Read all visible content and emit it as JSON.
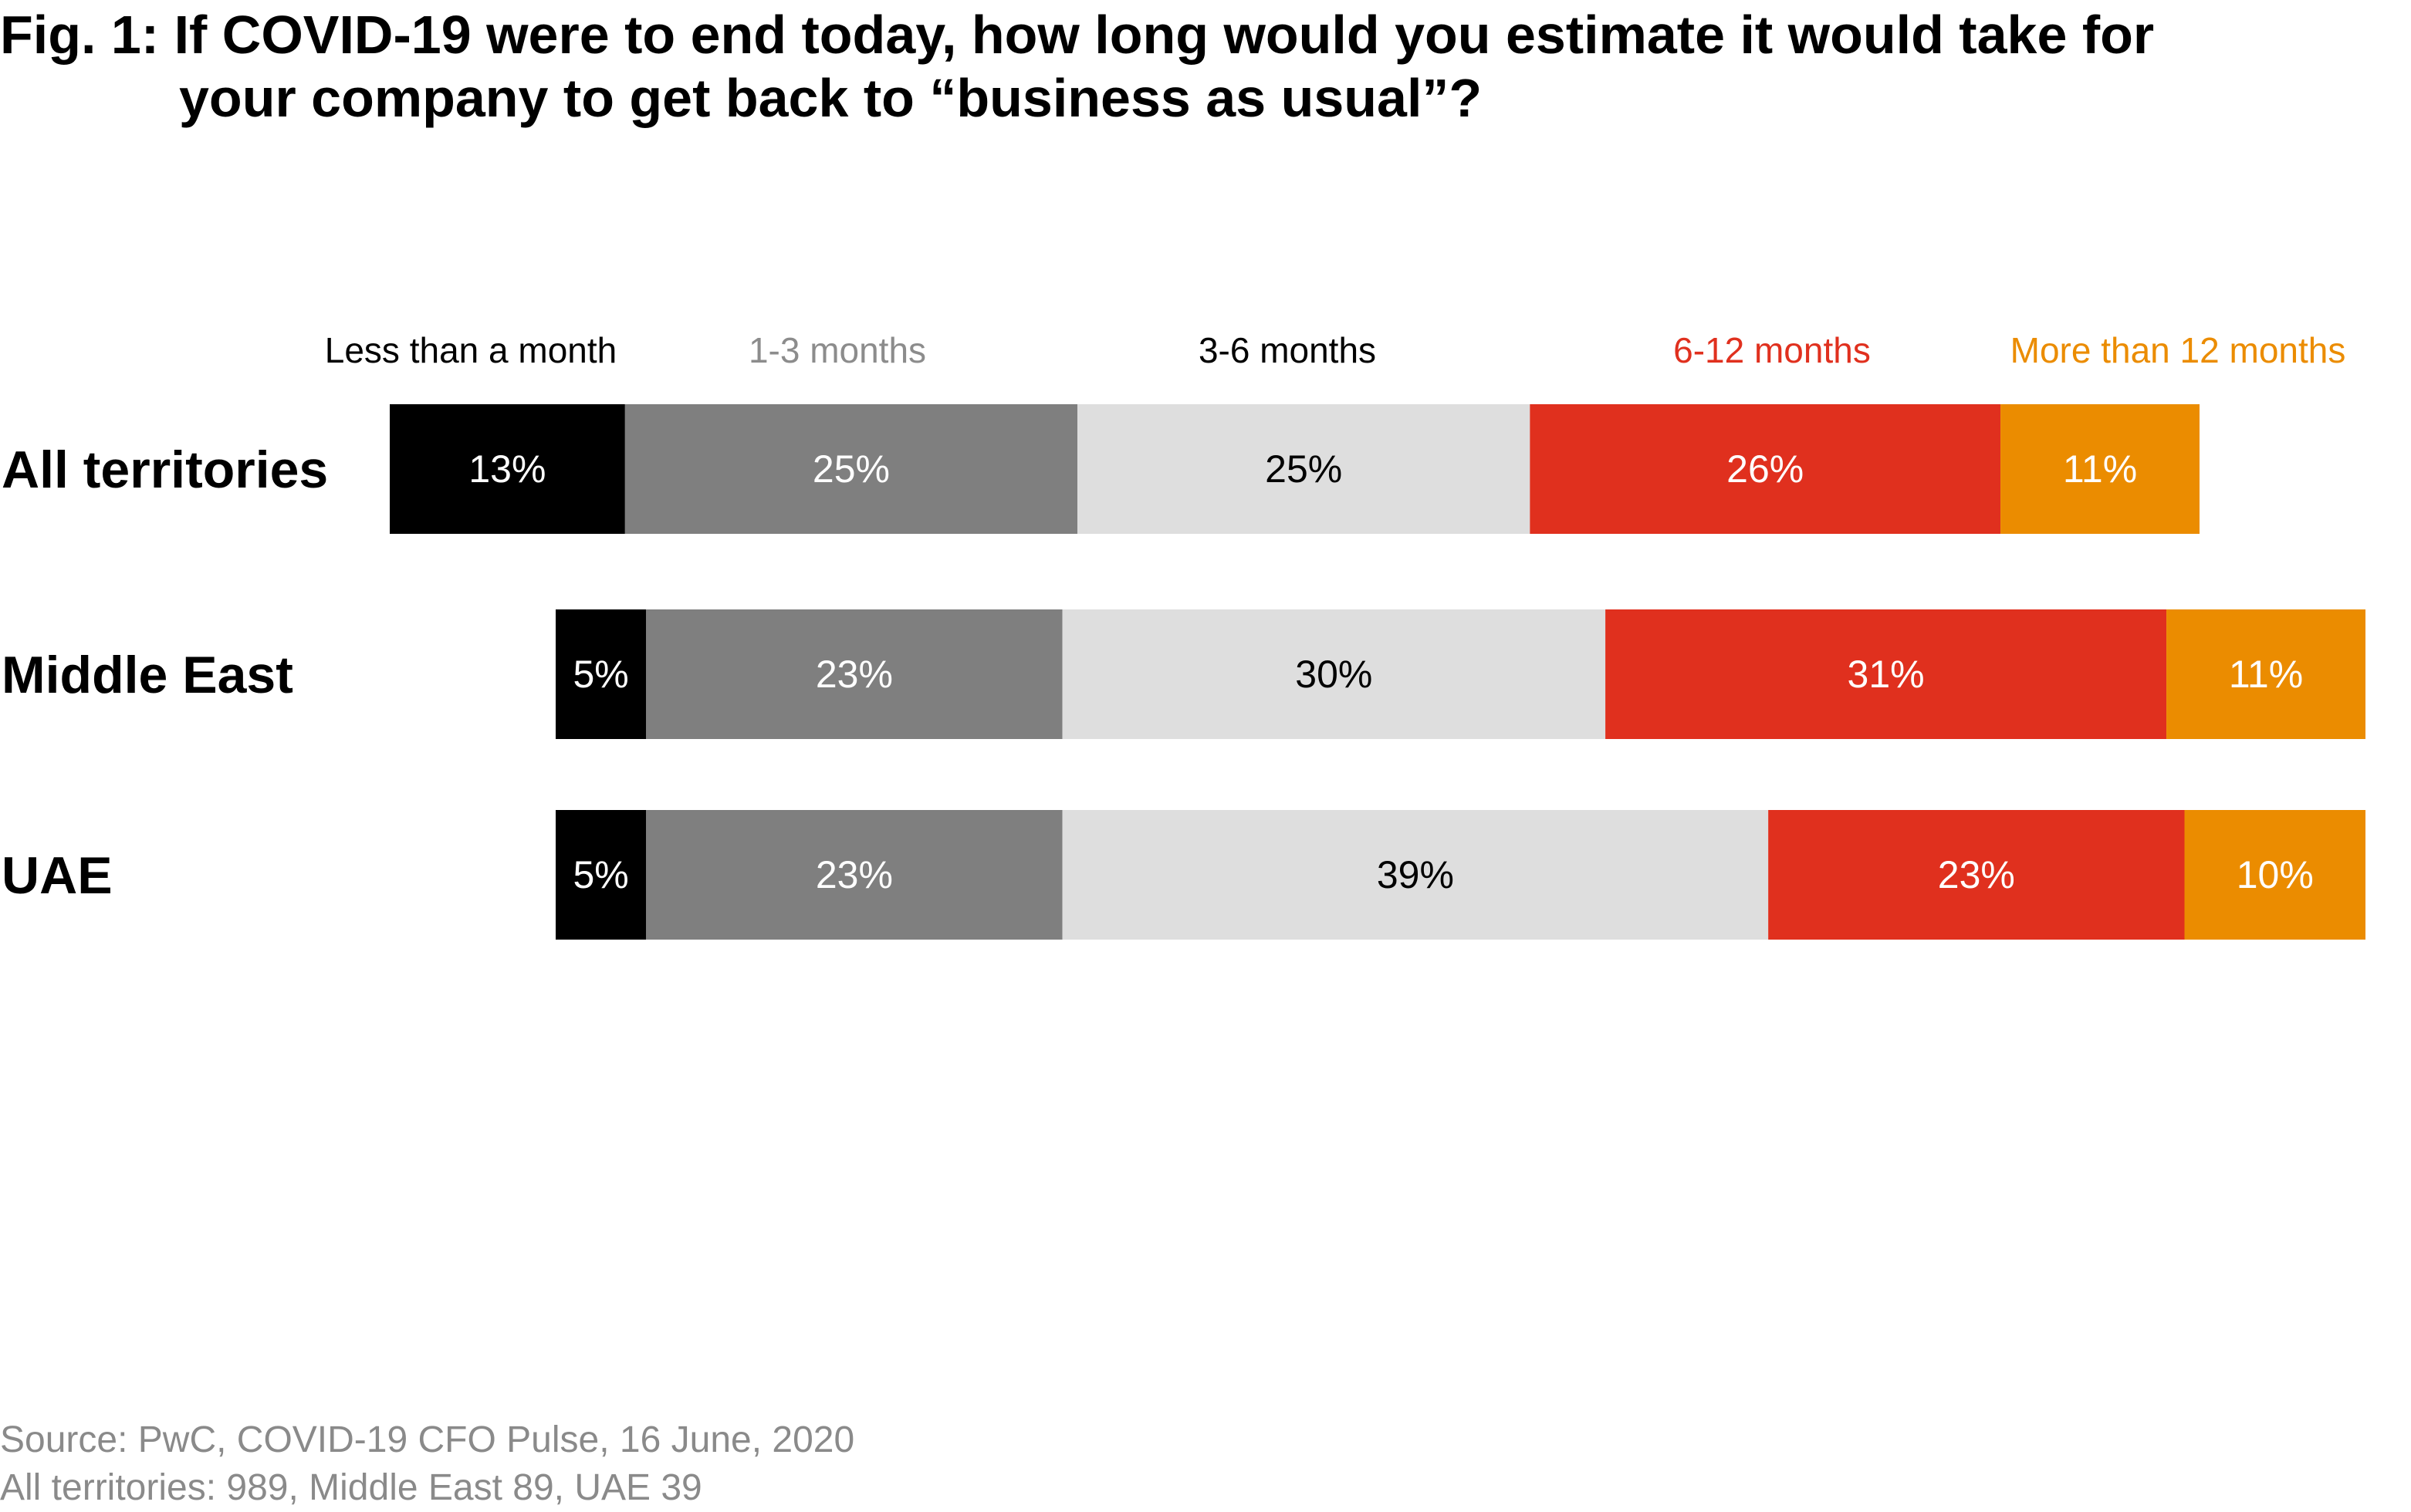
{
  "title": {
    "prefix": "Fig. 1:",
    "line1": "If COVID-19 were to end today, how long would you estimate it would take for",
    "line2": "your company to get back to “business as usual”?"
  },
  "source": {
    "line1": "Source: PwC, COVID-19 CFO Pulse, 16 June, 2020",
    "line2": "All territories: 989, Middle East 89, UAE 39"
  },
  "chart_data": {
    "type": "bar",
    "orientation": "horizontal",
    "stacked": true,
    "unit": "%",
    "categories": [
      "All territories",
      "Middle East",
      "UAE"
    ],
    "series": [
      {
        "name": "Less than a month",
        "values": [
          13,
          5,
          5
        ],
        "color": "#000000",
        "label_color": "#ffffff",
        "legend_color": "#000000"
      },
      {
        "name": "1-3 months",
        "values": [
          25,
          23,
          23
        ],
        "color": "#7f7f7f",
        "label_color": "#ffffff",
        "legend_color": "#8c8c8c"
      },
      {
        "name": "3-6 months",
        "values": [
          25,
          30,
          39
        ],
        "color": "#dedede",
        "label_color": "#000000",
        "legend_color": "#000000"
      },
      {
        "name": "6-12 months",
        "values": [
          26,
          31,
          23
        ],
        "color": "#e0301e",
        "label_color": "#ffffff",
        "legend_color": "#e0301e"
      },
      {
        "name": "More than 12 months",
        "values": [
          11,
          11,
          10
        ],
        "color": "#eb8c00",
        "label_color": "#ffffff",
        "legend_color": "#eb8c00"
      }
    ],
    "legend_position": "top",
    "grid": false
  }
}
